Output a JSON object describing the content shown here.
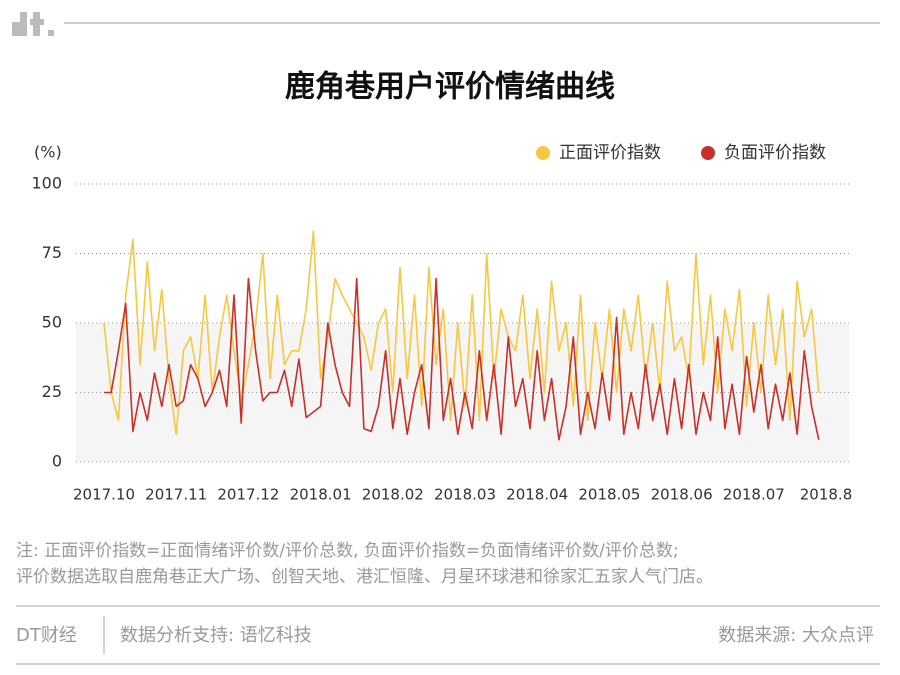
{
  "chart_data": {
    "type": "line",
    "title": "鹿角巷用户评价情绪曲线",
    "y_label": "(%)",
    "categories": [
      "2017.10",
      null,
      null,
      null,
      null,
      null,
      null,
      null,
      null,
      null,
      "2017.11",
      null,
      null,
      null,
      null,
      null,
      null,
      null,
      null,
      null,
      "2017.12",
      null,
      null,
      null,
      null,
      null,
      null,
      null,
      null,
      null,
      "2018.01",
      null,
      null,
      null,
      null,
      null,
      null,
      null,
      null,
      null,
      "2018.02",
      null,
      null,
      null,
      null,
      null,
      null,
      null,
      null,
      null,
      "2018.03",
      null,
      null,
      null,
      null,
      null,
      null,
      null,
      null,
      null,
      "2018.04",
      null,
      null,
      null,
      null,
      null,
      null,
      null,
      null,
      null,
      "2018.05",
      null,
      null,
      null,
      null,
      null,
      null,
      null,
      null,
      null,
      "2018.06",
      null,
      null,
      null,
      null,
      null,
      null,
      null,
      null,
      null,
      "2018.07",
      null,
      null,
      null,
      null,
      null,
      null,
      null,
      null,
      null,
      "2018.8"
    ],
    "series": [
      {
        "name": "正面评价指数",
        "color": "#f5c842",
        "values": [
          50,
          25,
          15,
          60,
          80,
          35,
          72,
          40,
          62,
          30,
          10,
          40,
          45,
          30,
          60,
          25,
          45,
          60,
          40,
          22,
          35,
          50,
          75,
          30,
          60,
          35,
          40,
          40,
          55,
          83,
          30,
          45,
          66,
          60,
          55,
          50,
          45,
          33,
          50,
          55,
          25,
          70,
          30,
          60,
          20,
          70,
          35,
          55,
          15,
          50,
          20,
          60,
          15,
          75,
          30,
          55,
          45,
          40,
          60,
          30,
          55,
          25,
          65,
          40,
          50,
          20,
          60,
          15,
          50,
          30,
          55,
          25,
          55,
          40,
          60,
          30,
          50,
          25,
          65,
          40,
          45,
          30,
          75,
          35,
          60,
          25,
          55,
          40,
          62,
          20,
          50,
          25,
          60,
          35,
          55,
          15,
          65,
          45,
          55,
          25,
          null
        ]
      },
      {
        "name": "负面评价指数",
        "color": "#c8302a",
        "values": [
          25,
          25,
          40,
          57,
          11,
          25,
          15,
          32,
          20,
          35,
          20,
          22,
          35,
          30,
          20,
          25,
          33,
          20,
          60,
          14,
          66,
          40,
          22,
          25,
          25,
          33,
          20,
          37,
          16,
          18,
          20,
          50,
          35,
          25,
          20,
          66,
          12,
          11,
          20,
          40,
          12,
          30,
          10,
          25,
          35,
          12,
          66,
          15,
          30,
          10,
          25,
          12,
          40,
          15,
          35,
          10,
          45,
          20,
          30,
          12,
          40,
          15,
          30,
          8,
          20,
          45,
          10,
          25,
          12,
          32,
          15,
          52,
          10,
          25,
          12,
          35,
          15,
          28,
          10,
          30,
          12,
          35,
          10,
          25,
          15,
          45,
          12,
          28,
          10,
          38,
          18,
          35,
          12,
          28,
          15,
          32,
          10,
          40,
          20,
          8,
          null
        ]
      }
    ],
    "ylim": [
      0,
      100
    ],
    "yticks": [
      0,
      25,
      50,
      75,
      100
    ],
    "grid": true,
    "legend": "top-right"
  },
  "notes": [
    "注: 正面评价指数=正面情绪评价数/评价总数, 负面评价指数=负面情绪评价数/评价总数;",
    "评价数据选取自鹿角巷正大广场、创智天地、港汇恒隆、月星环球港和徐家汇五家人气门店。"
  ],
  "footer": {
    "brand": "DT财经",
    "support": "数据分析支持: 语忆科技",
    "source": "数据来源: 大众点评"
  }
}
